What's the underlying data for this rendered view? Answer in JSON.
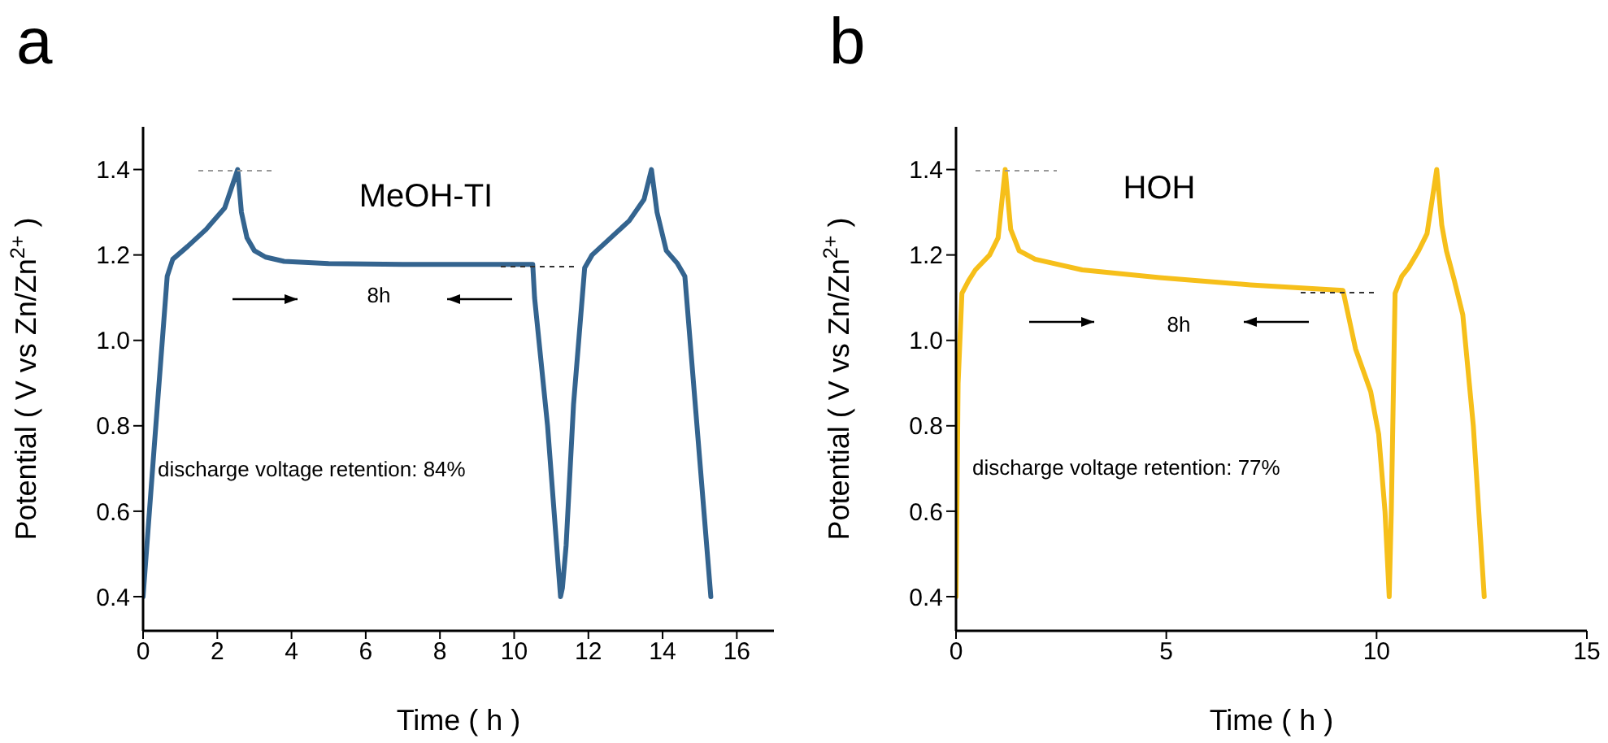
{
  "chart_data": [
    {
      "type": "line",
      "title": "a",
      "xlabel": "Time ( h )",
      "ylabel": "Potential ( V vs Zn/Zn$^{2+}$ )",
      "annotations": [
        "MeOH-TI",
        "8h",
        "discharge voltage retention: 84%"
      ],
      "xlim": [
        0,
        17
      ],
      "xticks": [
        0,
        2,
        4,
        6,
        8,
        10,
        12,
        14,
        16
      ],
      "ylim": [
        0.32,
        1.5
      ],
      "yticks": [
        0.4,
        0.6,
        0.8,
        {
          "value": 1,
          "label": "1.0"
        },
        1.2,
        1.4
      ],
      "series": [
        {
          "color": "#34648f",
          "x": [
            0,
            0.3,
            0.65,
            0.8,
            1.2,
            1.7,
            2.2,
            2.55,
            2.65,
            2.8,
            3.0,
            3.3,
            3.8,
            5,
            7,
            9,
            10.5,
            10.55,
            10.9,
            11.25,
            11.3,
            11.4,
            11.6,
            11.9,
            12.1,
            12.6,
            13.1,
            13.5,
            13.7,
            13.85,
            14.1,
            14.4,
            14.6,
            15.3
          ],
          "values": [
            0.4,
            0.75,
            1.15,
            1.19,
            1.22,
            1.26,
            1.31,
            1.4,
            1.3,
            1.24,
            1.21,
            1.195,
            1.185,
            1.18,
            1.178,
            1.178,
            1.178,
            1.1,
            0.8,
            0.4,
            0.42,
            0.52,
            0.85,
            1.17,
            1.2,
            1.24,
            1.28,
            1.33,
            1.4,
            1.3,
            1.21,
            1.18,
            1.15,
            0.4
          ]
        }
      ]
    },
    {
      "type": "line",
      "title": "b",
      "xlabel": "Time ( h )",
      "ylabel": "Potential ( V vs Zn/Zn$^{2+}$ )",
      "annotations": [
        "HOH",
        "8h",
        "discharge voltage retention: 77%"
      ],
      "xlim": [
        0,
        15
      ],
      "xticks": [
        0,
        5,
        10,
        15
      ],
      "ylim": [
        0.32,
        1.5
      ],
      "yticks": [
        0.4,
        0.6,
        0.8,
        {
          "value": 1,
          "label": "1.0"
        },
        1.2,
        1.4
      ],
      "series": [
        {
          "color": "#f6bf1a",
          "x": [
            0,
            0.05,
            0.14,
            0.3,
            0.46,
            0.8,
            1.0,
            1.17,
            1.3,
            1.5,
            1.88,
            3,
            4.84,
            7,
            9.2,
            9.5,
            9.86,
            10.05,
            10.2,
            10.3,
            10.35,
            10.44,
            10.6,
            10.76,
            11.0,
            11.2,
            11.43,
            11.55,
            11.66,
            11.85,
            12.05,
            12.3,
            12.56
          ],
          "values": [
            0.4,
            0.9,
            1.11,
            1.14,
            1.165,
            1.2,
            1.24,
            1.4,
            1.26,
            1.21,
            1.19,
            1.165,
            1.147,
            1.13,
            1.117,
            0.98,
            0.88,
            0.78,
            0.6,
            0.4,
            0.6,
            1.11,
            1.15,
            1.17,
            1.21,
            1.25,
            1.4,
            1.27,
            1.21,
            1.14,
            1.06,
            0.8,
            0.4
          ]
        }
      ]
    }
  ]
}
